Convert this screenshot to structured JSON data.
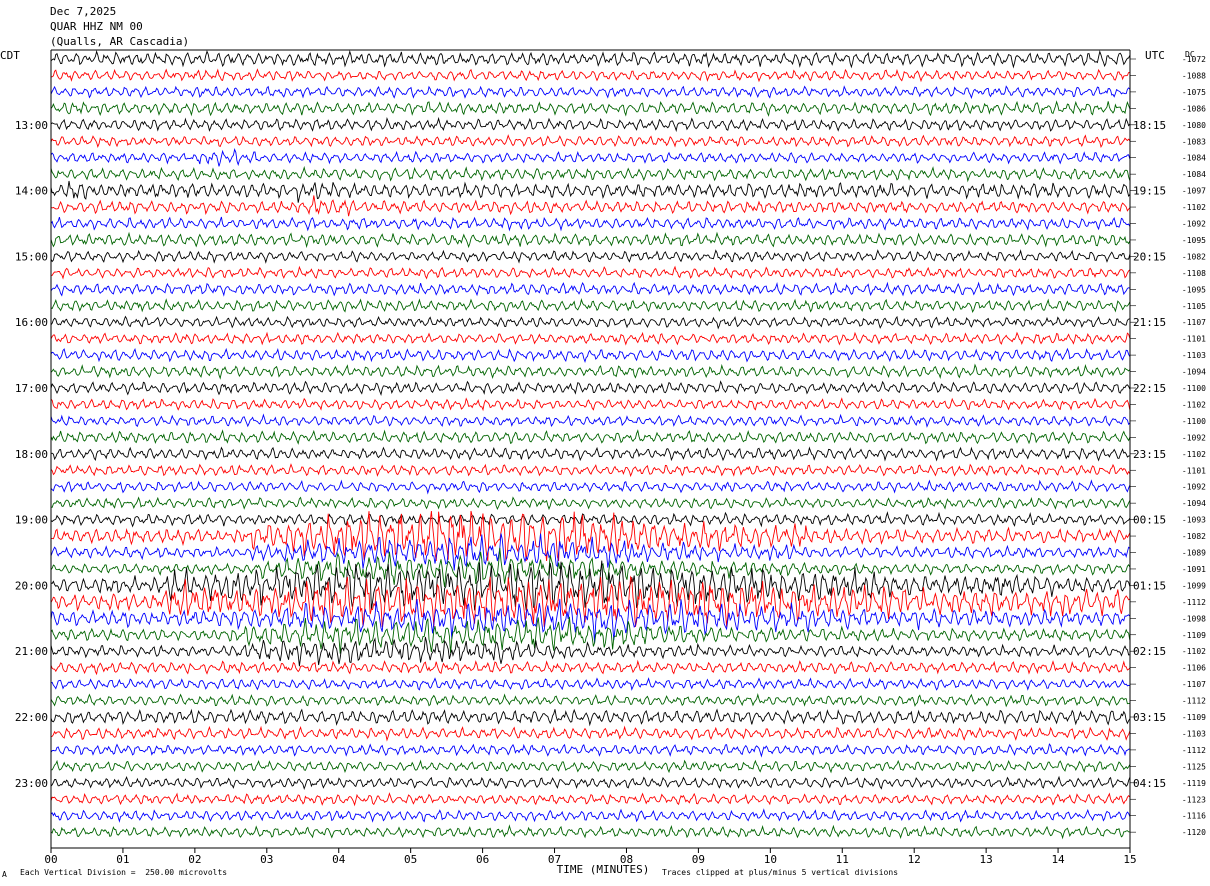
{
  "header": {
    "date": "Dec 7,2025",
    "station": "QUAR HHZ NM 00",
    "location": "(Qualls, AR Cascadia)"
  },
  "left_tz": "CDT",
  "right_tz": "UTC",
  "dc_label": "DC",
  "footer": {
    "scale_note": "Each Vertical Division =  250.00 microvolts",
    "clip_note": "Traces clipped at plus/minus 5 vertical divisions",
    "corner_mark": "A"
  },
  "chart_data": {
    "type": "line",
    "xlabel": "TIME (MINUTES)",
    "xlim": [
      0,
      15
    ],
    "x_ticks": [
      "00",
      "01",
      "02",
      "03",
      "04",
      "05",
      "06",
      "07",
      "08",
      "09",
      "10",
      "11",
      "12",
      "13",
      "14",
      "15"
    ],
    "trace_colors": [
      "#000000",
      "#ff0000",
      "#0000ff",
      "#006400"
    ],
    "traces_per_hour": 4,
    "rows": 48,
    "left_hour_labels": [
      {
        "row": 4,
        "label": "13:00"
      },
      {
        "row": 8,
        "label": "14:00"
      },
      {
        "row": 12,
        "label": "15:00"
      },
      {
        "row": 16,
        "label": "16:00"
      },
      {
        "row": 20,
        "label": "17:00"
      },
      {
        "row": 24,
        "label": "18:00"
      },
      {
        "row": 28,
        "label": "19:00"
      },
      {
        "row": 32,
        "label": "20:00"
      },
      {
        "row": 36,
        "label": "21:00"
      },
      {
        "row": 40,
        "label": "22:00"
      },
      {
        "row": 44,
        "label": "23:00"
      }
    ],
    "right_hour_labels": [
      {
        "row": 4,
        "label": "18:15"
      },
      {
        "row": 8,
        "label": "19:15"
      },
      {
        "row": 12,
        "label": "20:15"
      },
      {
        "row": 16,
        "label": "21:15"
      },
      {
        "row": 20,
        "label": "22:15"
      },
      {
        "row": 24,
        "label": "23:15"
      },
      {
        "row": 28,
        "label": "00:15"
      },
      {
        "row": 32,
        "label": "01:15"
      },
      {
        "row": 36,
        "label": "02:15"
      },
      {
        "row": 40,
        "label": "03:15"
      },
      {
        "row": 44,
        "label": "04:15"
      }
    ],
    "dc_offsets": [
      "-1072",
      "-1088",
      "-1075",
      "-1086",
      "-1080",
      "-1083",
      "-1084",
      "-1084",
      "-1097",
      "-1102",
      "-1092",
      "-1095",
      "-1082",
      "-1108",
      "-1095",
      "-1105",
      "-1107",
      "-1101",
      "-1103",
      "-1094",
      "-1100",
      "-1102",
      "-1100",
      "-1092",
      "-1102",
      "-1101",
      "-1092",
      "-1094",
      "-1093",
      "-1082",
      "-1089",
      "-1091",
      "-1099",
      "-1112",
      "-1098",
      "-1109",
      "-1102",
      "-1106",
      "-1107",
      "-1112",
      "-1109",
      "-1103",
      "-1112",
      "-1125",
      "-1119",
      "-1123",
      "-1116",
      "-1120"
    ],
    "amplitude_divisions": [
      1.3,
      1.0,
      1.0,
      1.2,
      1.1,
      1.0,
      1.0,
      1.1,
      1.4,
      1.2,
      1.1,
      1.2,
      1.0,
      1.0,
      1.1,
      1.1,
      1.0,
      1.0,
      1.1,
      1.1,
      1.1,
      1.0,
      1.0,
      1.1,
      1.1,
      1.0,
      1.0,
      1.0,
      1.1,
      1.4,
      1.1,
      1.0,
      1.6,
      1.6,
      1.5,
      1.2,
      1.1,
      1.1,
      1.0,
      1.0,
      1.3,
      1.1,
      1.0,
      1.0,
      1.0,
      1.0,
      1.0,
      1.0
    ],
    "events": [
      {
        "row": 6,
        "minute_start": 2.0,
        "minute_end": 3.2,
        "amplitude_divisions": 1.6
      },
      {
        "row": 8,
        "minute_start": 0.0,
        "minute_end": 1.0,
        "amplitude_divisions": 1.8
      },
      {
        "row": 8,
        "minute_start": 3.2,
        "minute_end": 4.4,
        "amplitude_divisions": 1.8
      },
      {
        "row": 9,
        "minute_start": 3.5,
        "minute_end": 4.5,
        "amplitude_divisions": 2.0
      },
      {
        "row": 29,
        "minute_start": 2.8,
        "minute_end": 10.5,
        "amplitude_divisions": 5.0
      },
      {
        "row": 30,
        "minute_start": 2.8,
        "minute_end": 10.5,
        "amplitude_divisions": 3.0
      },
      {
        "row": 31,
        "minute_start": 2.8,
        "minute_end": 10.5,
        "amplitude_divisions": 3.0
      },
      {
        "row": 32,
        "minute_start": 1.5,
        "minute_end": 14.0,
        "amplitude_divisions": 4.5
      },
      {
        "row": 33,
        "minute_start": 1.5,
        "minute_end": 15.0,
        "amplitude_divisions": 5.0
      },
      {
        "row": 34,
        "minute_start": 2.5,
        "minute_end": 13.0,
        "amplitude_divisions": 3.5
      },
      {
        "row": 35,
        "minute_start": 2.5,
        "minute_end": 11.0,
        "amplitude_divisions": 3.0
      },
      {
        "row": 36,
        "minute_start": 2.5,
        "minute_end": 9.0,
        "amplitude_divisions": 2.5
      }
    ]
  }
}
